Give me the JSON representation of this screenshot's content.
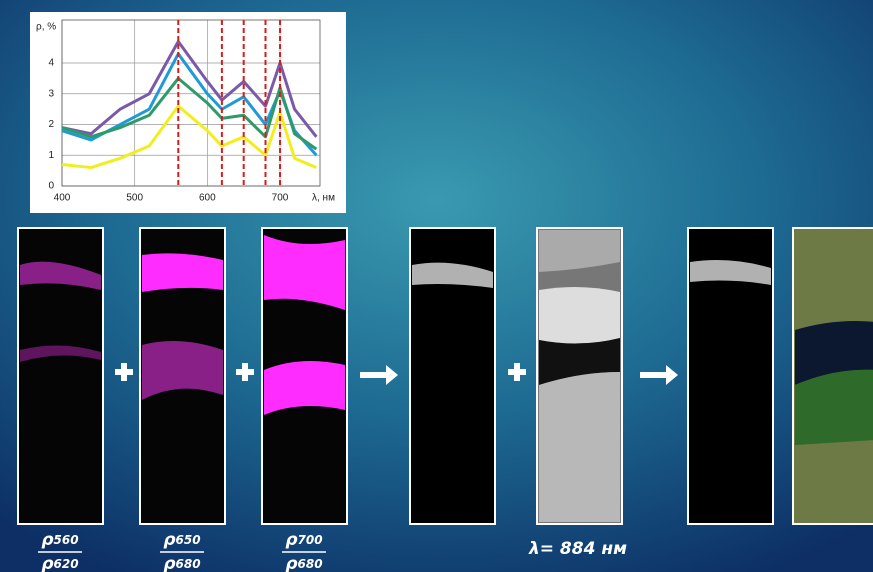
{
  "chart_data": {
    "type": "line",
    "ylabel": "ρ, %",
    "xlabel": "λ, нм",
    "x": [
      400,
      440,
      480,
      520,
      560,
      600,
      620,
      650,
      680,
      700,
      720,
      750
    ],
    "series": [
      {
        "color": "#7a5aa8",
        "values": [
          1.9,
          1.7,
          2.5,
          3.0,
          4.7,
          3.4,
          2.8,
          3.4,
          2.6,
          4.0,
          2.5,
          1.6
        ]
      },
      {
        "color": "#1f9ad6",
        "values": [
          1.8,
          1.5,
          2.0,
          2.5,
          4.3,
          3.0,
          2.5,
          2.9,
          2.0,
          3.1,
          1.8,
          1.0
        ]
      },
      {
        "color": "#2e9a6a",
        "values": [
          1.9,
          1.6,
          1.9,
          2.3,
          3.5,
          2.7,
          2.2,
          2.3,
          1.6,
          3.2,
          1.7,
          1.2
        ]
      },
      {
        "color": "#f2ee1e",
        "values": [
          0.7,
          0.6,
          0.9,
          1.3,
          2.6,
          1.8,
          1.3,
          1.6,
          1.0,
          2.4,
          0.9,
          0.6
        ]
      }
    ],
    "markers": [
      560,
      620,
      650,
      680,
      700
    ],
    "marker_color": "#d0201e",
    "xlim": [
      400,
      755
    ],
    "ylim": [
      0,
      5.4
    ],
    "xticks": [
      400,
      500,
      600,
      700
    ],
    "yticks": [
      0,
      1,
      2,
      3,
      4
    ],
    "grid": true
  },
  "formulas": [
    {
      "numerator": {
        "symbol": "ρ",
        "sub": "560"
      },
      "denominator": {
        "symbol": "ρ",
        "sub": "620"
      }
    },
    {
      "numerator": {
        "symbol": "ρ",
        "sub": "650"
      },
      "denominator": {
        "symbol": "ρ",
        "sub": "680"
      }
    },
    {
      "numerator": {
        "symbol": "ρ",
        "sub": "700"
      },
      "denominator": {
        "symbol": "ρ",
        "sub": "680"
      }
    }
  ],
  "nir_label": "λ= 884 нм"
}
